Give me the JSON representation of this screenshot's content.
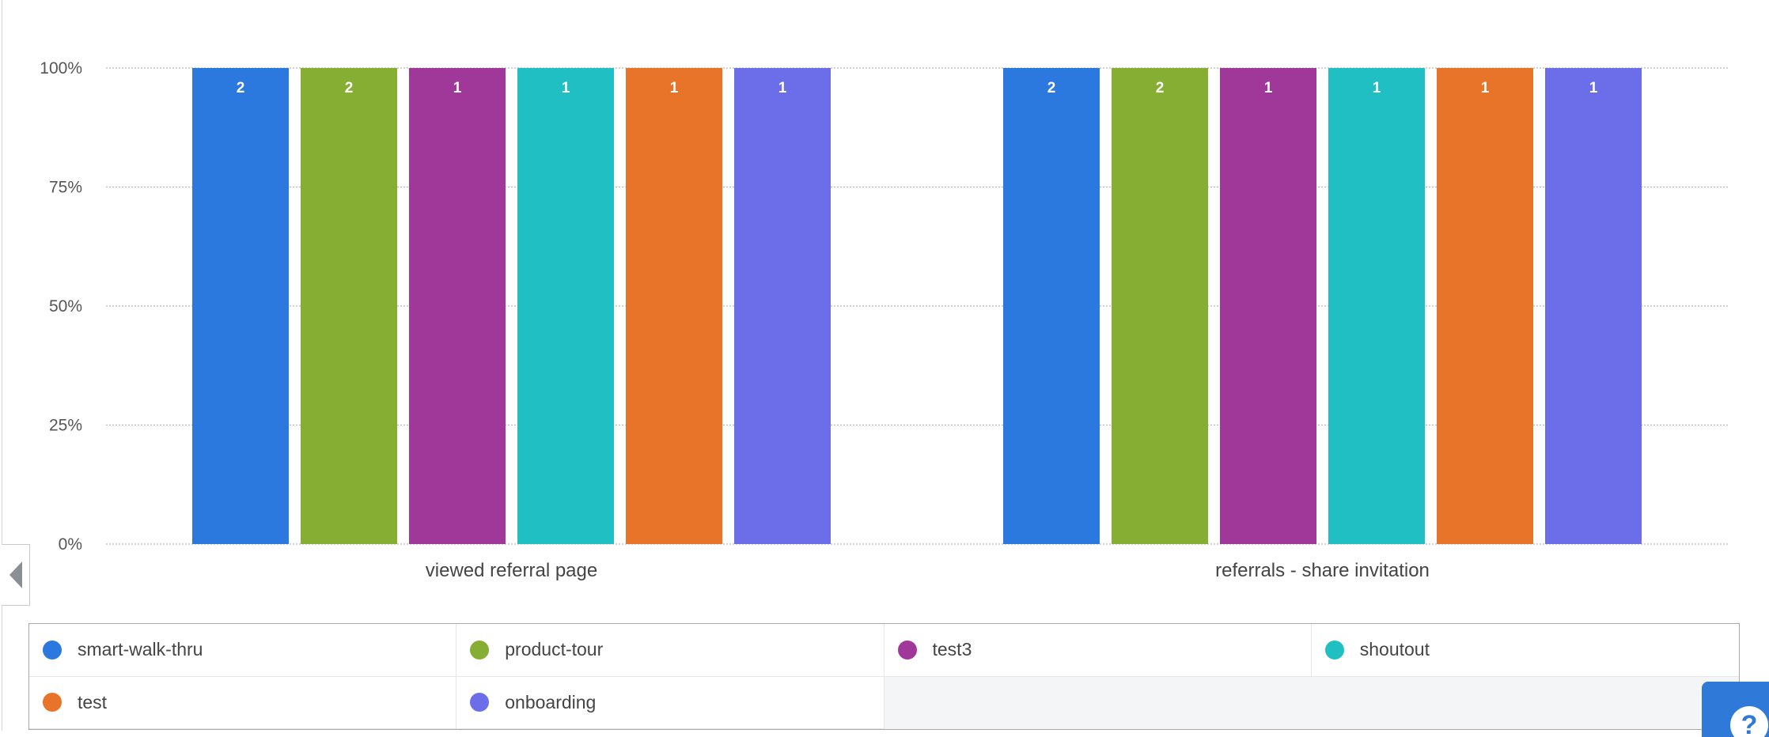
{
  "chart_data": {
    "type": "bar",
    "title": "",
    "xlabel": "",
    "ylabel": "",
    "ylim": [
      0,
      100
    ],
    "yticks": [
      "0%",
      "25%",
      "50%",
      "75%",
      "100%"
    ],
    "categories": [
      "viewed referral page",
      "referrals - share invitation"
    ],
    "grid": true,
    "legend_position": "bottom",
    "series": [
      {
        "name": "smart-walk-thru",
        "color": "#2b78df",
        "values": [
          100,
          100
        ],
        "labels": [
          "2",
          "2"
        ]
      },
      {
        "name": "product-tour",
        "color": "#86ae33",
        "values": [
          100,
          100
        ],
        "labels": [
          "2",
          "2"
        ]
      },
      {
        "name": "test3",
        "color": "#a0389a",
        "values": [
          100,
          100
        ],
        "labels": [
          "1",
          "1"
        ]
      },
      {
        "name": "shoutout",
        "color": "#1fbfc4",
        "values": [
          100,
          100
        ],
        "labels": [
          "1",
          "1"
        ]
      },
      {
        "name": "test",
        "color": "#e8742a",
        "values": [
          100,
          100
        ],
        "labels": [
          "1",
          "1"
        ]
      },
      {
        "name": "onboarding",
        "color": "#6b6ee8",
        "values": [
          100,
          100
        ],
        "labels": [
          "1",
          "1"
        ]
      }
    ]
  },
  "legend": {
    "items": [
      "smart-walk-thru",
      "product-tour",
      "test3",
      "shoutout",
      "test",
      "onboarding"
    ]
  },
  "help": {
    "label": "?"
  }
}
